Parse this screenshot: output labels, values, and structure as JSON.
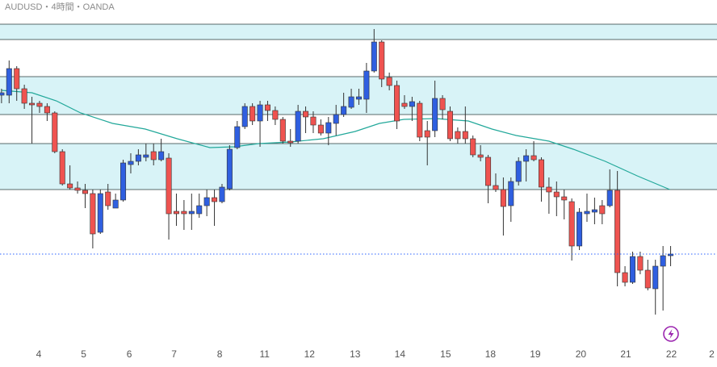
{
  "chart_data": {
    "type": "candlestick",
    "title": "AUDUSD・4時間・OANDA",
    "open": [
      337,
      337,
      370,
      345,
      327,
      327,
      323,
      315,
      267,
      227,
      222,
      219,
      215,
      167,
      217,
      197,
      207,
      251,
      255,
      260,
      267,
      257,
      259,
      193,
      193,
      190,
      190,
      200,
      210,
      205,
      221,
      272,
      298,
      323,
      305,
      325,
      318,
      307,
      280,
      280,
      317,
      310,
      300,
      290,
      302,
      313,
      322,
      332,
      332,
      367,
      403,
      359,
      349,
      327,
      323,
      327,
      293,
      293,
      333,
      317,
      292,
      292,
      283,
      263,
      260,
      225,
      220,
      200,
      230,
      255,
      262,
      257,
      223,
      217,
      211,
      205,
      150,
      190,
      192,
      200,
      200,
      219,
      117,
      105,
      137,
      120,
      97,
      125,
      138
    ],
    "high": [
      345,
      380,
      373,
      350,
      335,
      330,
      327,
      317,
      270,
      250,
      230,
      227,
      220,
      220,
      227,
      215,
      257,
      265,
      270,
      277,
      277,
      283,
      265,
      215,
      207,
      215,
      215,
      220,
      220,
      227,
      275,
      305,
      327,
      327,
      330,
      330,
      323,
      310,
      295,
      325,
      323,
      317,
      307,
      310,
      325,
      340,
      345,
      345,
      377,
      419,
      405,
      365,
      355,
      337,
      335,
      330,
      305,
      355,
      337,
      323,
      297,
      323,
      287,
      275,
      263,
      240,
      235,
      235,
      260,
      270,
      280,
      260,
      235,
      230,
      220,
      209,
      197,
      215,
      210,
      207,
      245,
      243,
      125,
      143,
      143,
      133,
      133,
      150,
      150
    ],
    "low": [
      327,
      327,
      330,
      320,
      277,
      315,
      305,
      265,
      225,
      220,
      215,
      197,
      147,
      165,
      195,
      197,
      205,
      240,
      250,
      255,
      250,
      255,
      158,
      175,
      170,
      170,
      185,
      187,
      175,
      203,
      219,
      270,
      295,
      300,
      273,
      305,
      300,
      277,
      273,
      277,
      290,
      290,
      287,
      275,
      287,
      310,
      320,
      325,
      315,
      365,
      347,
      343,
      295,
      320,
      305,
      280,
      250,
      285,
      307,
      280,
      277,
      277,
      260,
      255,
      203,
      217,
      163,
      180,
      225,
      230,
      255,
      205,
      190,
      187,
      183,
      132,
      145,
      180,
      177,
      177,
      198,
      100,
      100,
      103,
      115,
      95,
      65,
      70,
      125
    ],
    "close": [
      340,
      370,
      345,
      327,
      325,
      323,
      315,
      267,
      227,
      222,
      219,
      215,
      165,
      215,
      200,
      207,
      253,
      255,
      263,
      263,
      257,
      267,
      190,
      190,
      190,
      193,
      200,
      210,
      205,
      223,
      270,
      298,
      323,
      305,
      325,
      318,
      307,
      280,
      278,
      317,
      310,
      300,
      290,
      303,
      313,
      323,
      335,
      335,
      367,
      403,
      357,
      349,
      305,
      323,
      329,
      285,
      285,
      333,
      319,
      283,
      283,
      283,
      263,
      260,
      225,
      220,
      199,
      230,
      255,
      262,
      257,
      223,
      217,
      211,
      207,
      150,
      192,
      193,
      195,
      190,
      219,
      117,
      105,
      137,
      120,
      98,
      125,
      138,
      140
    ],
    "up_color": "#2f5fe0",
    "down_color": "#ef5350",
    "xlim": [
      -0.2,
      94.1
    ],
    "ylim": [
      0,
      455
    ],
    "xticks": [
      {
        "value": 4.9,
        "label": "4"
      },
      {
        "value": 10.8,
        "label": "5"
      },
      {
        "value": 16.8,
        "label": "6"
      },
      {
        "value": 22.7,
        "label": "7"
      },
      {
        "value": 28.7,
        "label": "8"
      },
      {
        "value": 34.6,
        "label": "11"
      },
      {
        "value": 40.5,
        "label": "12"
      },
      {
        "value": 46.5,
        "label": "13"
      },
      {
        "value": 52.4,
        "label": "14"
      },
      {
        "value": 58.4,
        "label": "15"
      },
      {
        "value": 64.3,
        "label": "18"
      },
      {
        "value": 70.2,
        "label": "19"
      },
      {
        "value": 76.2,
        "label": "20"
      },
      {
        "value": 82.1,
        "label": "21"
      },
      {
        "value": 88.1,
        "label": "22"
      },
      {
        "value": 93.4,
        "label": "2"
      }
    ],
    "zones": [
      {
        "from": 406,
        "to": 425
      },
      {
        "from": 313,
        "to": 360
      },
      {
        "from": 220,
        "to": 277
      }
    ],
    "zone_color": "#d8f3f7",
    "current_price": 140,
    "current_price_color": "#2962ff",
    "moving_average": {
      "x": [
        0,
        4.0,
        7.2,
        10.4,
        14.6,
        18.9,
        23.1,
        27.4,
        30.6,
        33.8,
        38.0,
        42.3,
        46.5,
        49.7,
        52.9,
        57.1,
        61.4,
        64.5,
        67.7,
        72.0,
        75.2,
        79.4,
        83.6,
        87.9
      ],
      "values": [
        343,
        340,
        330,
        315,
        302,
        295,
        283,
        272,
        273,
        277,
        279,
        283,
        292,
        302,
        307,
        308,
        305,
        295,
        287,
        280,
        270,
        255,
        237,
        220
      ],
      "color": "#22a89a"
    }
  }
}
